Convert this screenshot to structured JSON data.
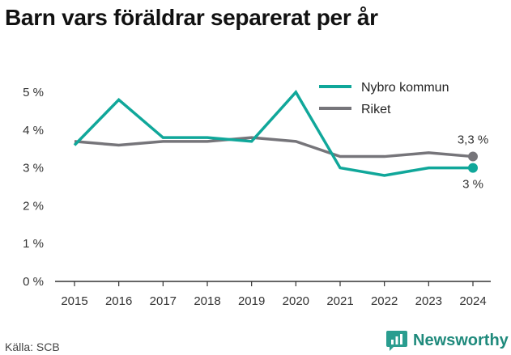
{
  "title": "Barn vars föräldrar separerat per år",
  "source": "Källa: SCB",
  "brand": {
    "name": "Newsworthy",
    "logo_icon": "bar-chart-speech-bubble-icon"
  },
  "colors": {
    "series_primary": "#10a79a",
    "series_secondary": "#76757a",
    "axis": "#333333",
    "brand": "#1f8a7c"
  },
  "chart_data": {
    "type": "line",
    "x": [
      2015,
      2016,
      2017,
      2018,
      2019,
      2020,
      2021,
      2022,
      2023,
      2024
    ],
    "x_tick_labels": [
      "2015",
      "2016",
      "2017",
      "2018",
      "2019",
      "2020",
      "2021",
      "2022",
      "2023",
      "2024"
    ],
    "ylim": [
      0,
      5
    ],
    "y_ticks": [
      0,
      1,
      2,
      3,
      4,
      5
    ],
    "y_tick_labels": [
      "0 %",
      "1 %",
      "2 %",
      "3 %",
      "4 %",
      "5 %"
    ],
    "grid": false,
    "legend_position": "top-right",
    "series": [
      {
        "name": "Nybro kommun",
        "color": "#10a79a",
        "values": [
          3.6,
          4.8,
          3.8,
          3.8,
          3.7,
          5.0,
          3.0,
          2.8,
          3.0,
          3.0
        ],
        "end_label": "3 %"
      },
      {
        "name": "Riket",
        "color": "#76757a",
        "values": [
          3.7,
          3.6,
          3.7,
          3.7,
          3.8,
          3.7,
          3.3,
          3.3,
          3.4,
          3.3
        ],
        "end_label": "3,3 %"
      }
    ]
  }
}
